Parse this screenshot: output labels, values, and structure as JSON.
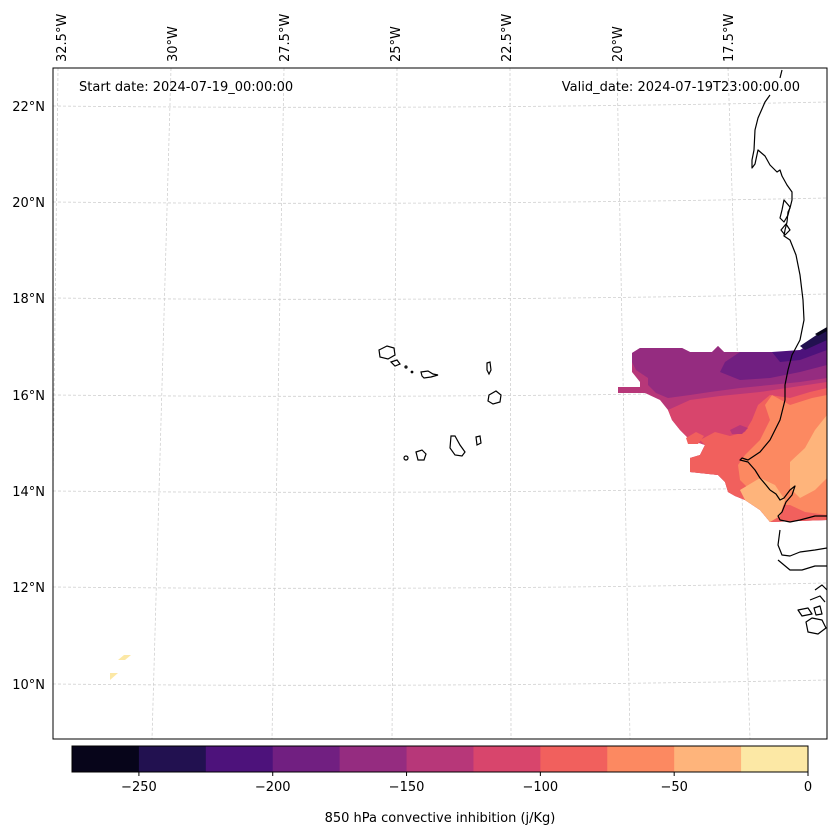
{
  "figure": {
    "start_date_label": "Start date: 2024-07-19_00:00:00",
    "valid_date_label": "Valid_date: 2024-07-19T23:00:00.00"
  },
  "map": {
    "projection": "lambert-conformal",
    "lon_ticks": [
      "32.5°W",
      "30°W",
      "27.5°W",
      "25°W",
      "22.5°W",
      "20°W",
      "17.5°W"
    ],
    "lat_ticks": [
      "22°N",
      "20°N",
      "18°N",
      "16°N",
      "14°N",
      "12°N",
      "10°N"
    ],
    "gridlines": true,
    "features": [
      "Cape Verde islands",
      "West African coastline (Mauritania, Senegal, Gambia, Guinea-Bissau)"
    ]
  },
  "chart_data": {
    "type": "heatmap",
    "title": "",
    "variable": "850 hPa convective inhibition",
    "units": "j/Kg",
    "colorbar": {
      "label": "850 hPa convective inhibition (j/Kg)",
      "ticks": [
        -250,
        -200,
        -150,
        -100,
        -50,
        0
      ],
      "tick_labels": [
        "−250",
        "−200",
        "−150",
        "−100",
        "−50",
        "0"
      ],
      "range": [
        -275,
        0
      ],
      "levels": [
        -275,
        -250,
        -225,
        -200,
        -175,
        -150,
        -125,
        -100,
        -75,
        -50,
        -25,
        0
      ],
      "colors": [
        "#07051a",
        "#221150",
        "#4d127b",
        "#711f81",
        "#952c80",
        "#b73779",
        "#d8456c",
        "#f1605d",
        "#fc8961",
        "#feb47b",
        "#fce8a5"
      ],
      "colormap": "magma",
      "orientation": "horizontal",
      "placement": "bottom"
    },
    "regions": [
      {
        "name": "northern edge over Mauritania/Senegal border",
        "approx_lat": 16.8,
        "approx_lon": -16.0,
        "value_range": [
          -275,
          -175
        ]
      },
      {
        "name": "offshore west of Senegal",
        "approx_lat": 16.3,
        "approx_lon": -19.0,
        "value_range": [
          -175,
          -150
        ]
      },
      {
        "name": "offshore Senegal coast",
        "approx_lat": 15.0,
        "approx_lon": -18.5,
        "value_range": [
          -125,
          -100
        ]
      },
      {
        "name": "Senegal interior",
        "approx_lat": 14.5,
        "approx_lon": -15.5,
        "value_range": [
          -75,
          -25
        ]
      },
      {
        "name": "Gambia/Casamance",
        "approx_lat": 13.2,
        "approx_lon": -16.5,
        "value_range": [
          -50,
          -25
        ]
      },
      {
        "name": "isolated patches southwest",
        "approx_lat": 10.3,
        "approx_lon": -30.8,
        "value_range": [
          -25,
          0
        ]
      }
    ]
  }
}
